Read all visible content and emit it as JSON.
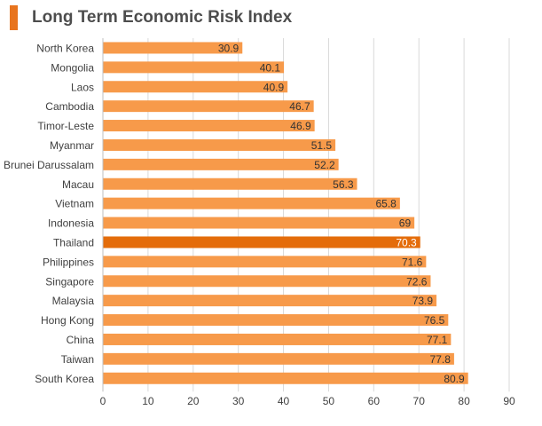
{
  "chart_data": {
    "type": "bar",
    "orientation": "horizontal",
    "title": "Long Term Economic Risk Index",
    "categories": [
      "North Korea",
      "Mongolia",
      "Laos",
      "Cambodia",
      "Timor-Leste",
      "Myanmar",
      "Brunei Darussalam",
      "Macau",
      "Vietnam",
      "Indonesia",
      "Thailand",
      "Philippines",
      "Singapore",
      "Malaysia",
      "Hong Kong",
      "China",
      "Taiwan",
      "South Korea"
    ],
    "values": [
      30.9,
      40.1,
      40.9,
      46.7,
      46.9,
      51.5,
      52.2,
      56.3,
      65.8,
      69,
      70.3,
      71.6,
      72.6,
      73.9,
      76.5,
      77.1,
      77.8,
      80.9
    ],
    "value_labels": [
      "30.9",
      "40.1",
      "40.9",
      "46.7",
      "46.9",
      "51.5",
      "52.2",
      "56.3",
      "65.8",
      "69",
      "70.3",
      "71.6",
      "72.6",
      "73.9",
      "76.5",
      "77.1",
      "77.8",
      "80.9"
    ],
    "highlight_category": "Thailand",
    "xlim": [
      0,
      90
    ],
    "xticks": [
      "0",
      "10",
      "20",
      "30",
      "40",
      "50",
      "60",
      "70",
      "80",
      "90"
    ],
    "xlabel": "",
    "ylabel": "",
    "grid": true,
    "legend": "none",
    "colors": {
      "bar": "#f79a4a",
      "highlight_bar": "#e46c0a",
      "accent": "#e8741e",
      "title": "#4d4d4d",
      "axis_text": "#404040",
      "grid": "#d9d9d9"
    }
  }
}
